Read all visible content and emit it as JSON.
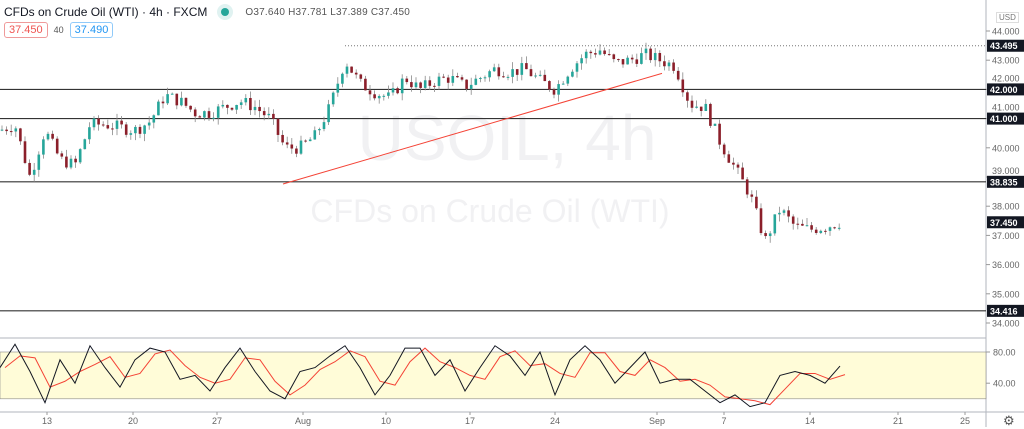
{
  "header": {
    "title": "CFDs on Crude Oil (WTI) · 4h · FXCM",
    "ohlc": "O37.640 H37.781 L37.389 C37.450",
    "sell_price": "37.450",
    "spread": "40",
    "buy_price": "37.490",
    "currency": "USD"
  },
  "watermark": {
    "line1": "USOIL, 4h",
    "line2": "CFDs on Crude Oil (WTI)"
  },
  "colors": {
    "up": "#26a69a",
    "down": "#8b1f2a",
    "trend": "#f44336",
    "band": "#fffcd8",
    "k": "#131722",
    "d": "#f44336",
    "status": "#26a69a"
  },
  "chart_data": {
    "type": "candlestick",
    "price_axis": {
      "ylim": [
        33.7,
        44.6
      ],
      "ticks": [
        "44.000",
        "43.000",
        "42.000",
        "41.000",
        "40.000",
        "39.000",
        "38.000",
        "37.000",
        "36.000",
        "35.000",
        "34.000"
      ]
    },
    "date_ticks": [
      "13",
      "20",
      "27",
      "Aug",
      "10",
      "17",
      "24",
      "Sep",
      "7",
      "14",
      "21",
      "25"
    ],
    "close_path": [
      40.6,
      40.8,
      39.0,
      40.6,
      39.6,
      39.4,
      40.8,
      40.8,
      40.7,
      40.6,
      40.9,
      41.8,
      41.6,
      41.2,
      41.2,
      41.4,
      41.6,
      41.4,
      41.0,
      40.0,
      40.0,
      40.4,
      41.4,
      43.0,
      42.2,
      41.9,
      41.7,
      42.4,
      42.0,
      42.3,
      42.4,
      42.1,
      42.4,
      42.7,
      42.6,
      42.7,
      42.3,
      42.0,
      42.7,
      43.2,
      43.35,
      42.9,
      43.0,
      43.2,
      43.0,
      42.8,
      41.5,
      41.4,
      40.2,
      39.3,
      38.4,
      36.8,
      37.9,
      37.3,
      37.2,
      37.3,
      37.45
    ],
    "horizontal_levels": [
      {
        "label": "43.495",
        "style": "dotted"
      },
      {
        "label": "42.000",
        "style": "solid"
      },
      {
        "label": "41.000",
        "style": "solid"
      },
      {
        "label": "38.835",
        "style": "solid"
      },
      {
        "label": "34.416",
        "style": "solid"
      }
    ],
    "last_price": "37.450",
    "trend_line": {
      "from": 38.76,
      "to": 42.55
    },
    "oscillator": {
      "ylim": [
        0,
        100
      ],
      "ticks": [
        "80.00",
        "40.00"
      ],
      "band": [
        20,
        80
      ],
      "k": [
        60,
        90,
        55,
        15,
        70,
        40,
        88,
        60,
        35,
        70,
        85,
        80,
        45,
        50,
        30,
        60,
        85,
        55,
        30,
        20,
        55,
        60,
        75,
        88,
        60,
        25,
        50,
        85,
        85,
        50,
        70,
        30,
        60,
        88,
        75,
        50,
        80,
        25,
        70,
        88,
        70,
        40,
        60,
        80,
        40,
        45,
        45,
        30,
        15,
        25,
        10,
        15,
        50,
        55,
        50,
        40,
        62
      ]
    }
  }
}
